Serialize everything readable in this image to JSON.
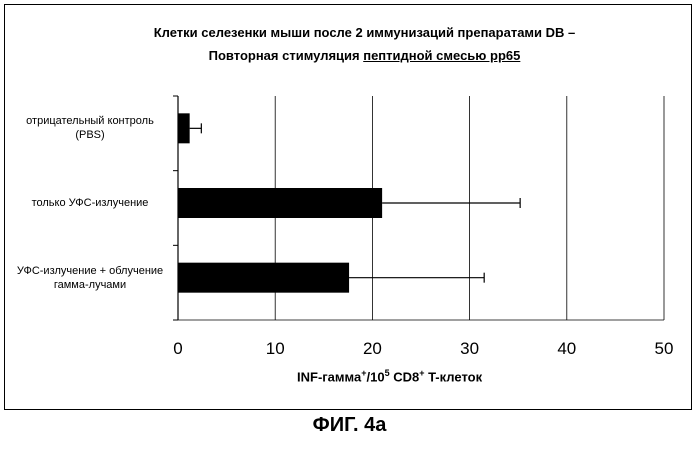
{
  "chart_data": {
    "type": "bar",
    "orientation": "horizontal",
    "title_line1": "Клетки селезенки мыши после 2 иммунизаций препаратами DB –",
    "title_line2_prefix": "Повторная стимуляция ",
    "title_line2_underlined": "пептидной смесью pp65",
    "categories": [
      "отрицательный контроль (PBS)",
      "только УФС-излучение",
      "УФС-излучение + облучение гамма-лучами"
    ],
    "category_lines": [
      [
        "отрицательный контроль",
        "(PBS)"
      ],
      [
        "только УФС-излучение"
      ],
      [
        "УФС-излучение + облучение",
        "гамма-лучами"
      ]
    ],
    "values": [
      1.2,
      21,
      17.6
    ],
    "errors": [
      1.2,
      14.2,
      13.9
    ],
    "xlim": [
      0,
      50
    ],
    "xticks": [
      0,
      10,
      20,
      30,
      40,
      50
    ],
    "xlabel_main": "INF-гамма",
    "xlabel_sup1": "+",
    "xlabel_mid": "/10",
    "xlabel_sup2": "5",
    "xlabel_rest": " CD8",
    "xlabel_sup3": "+",
    "xlabel_tail": " T-клеток",
    "grid": "vertical",
    "bar_color": "#000000"
  },
  "figure_label": "ФИГ. 4а"
}
